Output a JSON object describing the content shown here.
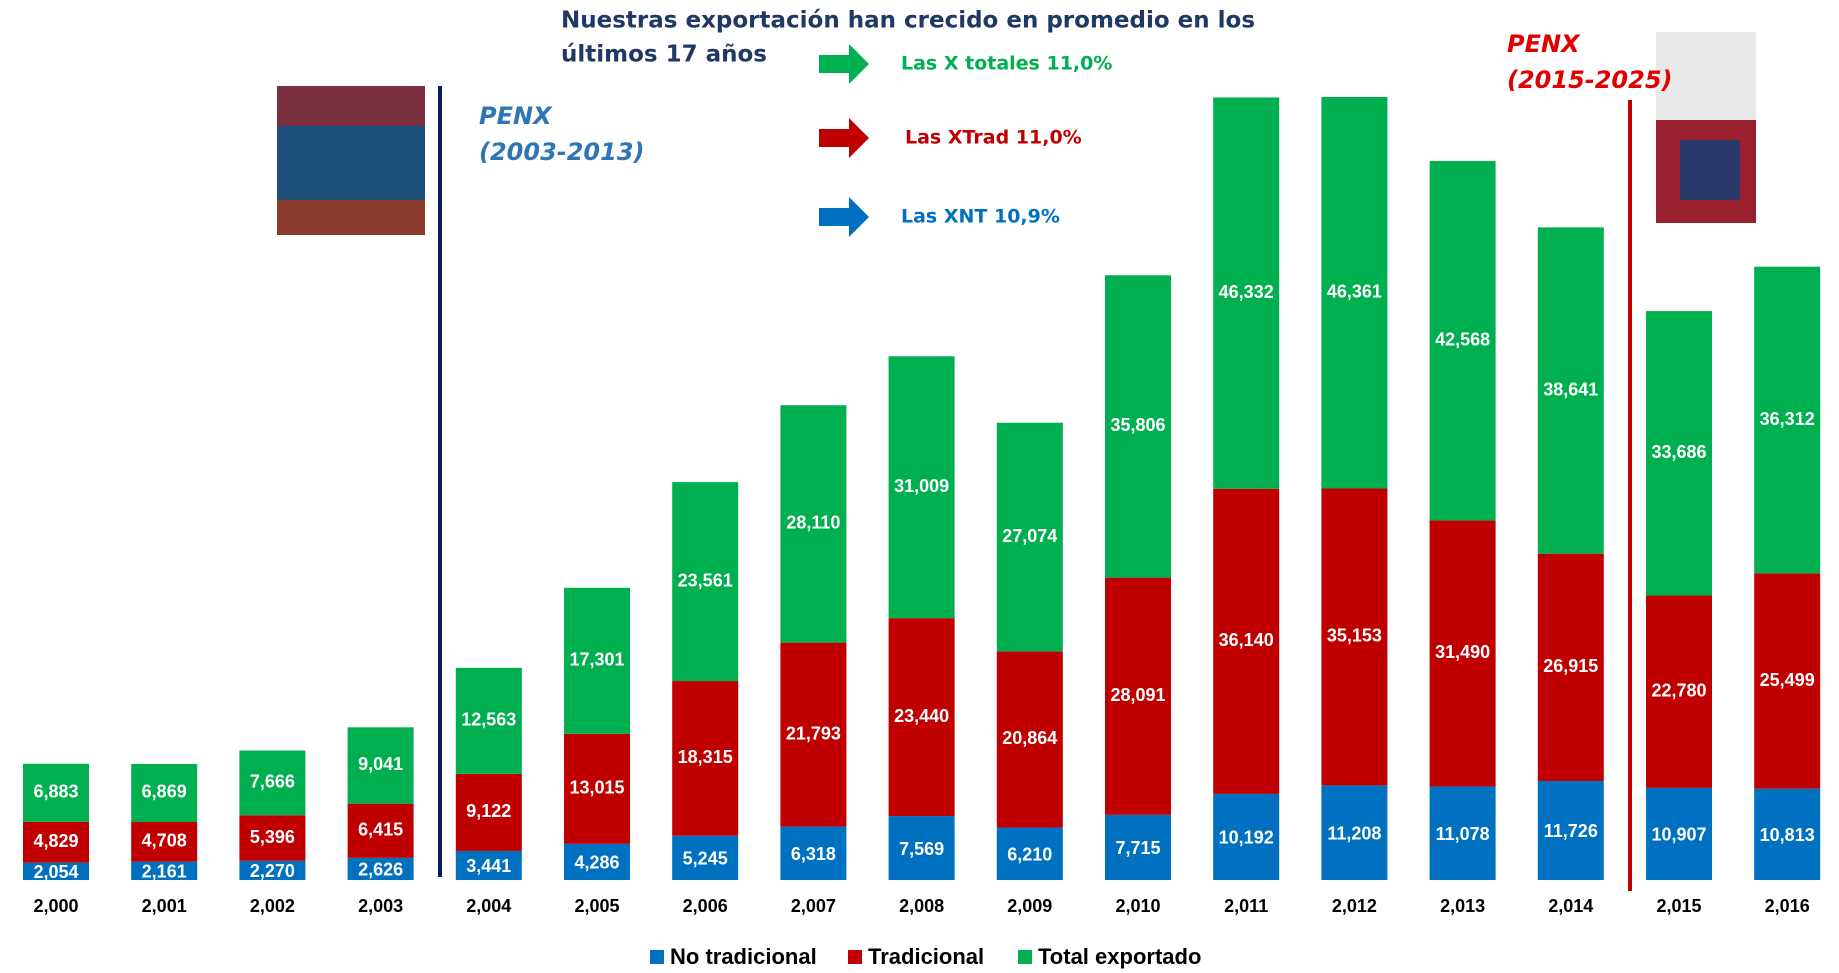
{
  "chart_data": {
    "type": "bar",
    "stacked": true,
    "title_lines": [
      "Nuestras exportación han crecido en promedio en los",
      "últimos 17 años"
    ],
    "annotations": [
      {
        "text": "Las X totales 11,0%",
        "color": "#00b050"
      },
      {
        "text": "Las XTrad 11,0%",
        "color": "#c00000"
      },
      {
        "text": "Las XNT 10,9%",
        "color": "#0070c0"
      }
    ],
    "periods": [
      {
        "lines": [
          "PENX",
          "(2003-2013)"
        ],
        "color": "#2e75b6",
        "line_color": "#002060"
      },
      {
        "lines": [
          "PENX",
          "(2015-2025)"
        ],
        "color": "#e00000",
        "line_color": "#c00000"
      }
    ],
    "categories": [
      "2,000",
      "2,001",
      "2,002",
      "2,003",
      "2,004",
      "2,005",
      "2,006",
      "2,007",
      "2,008",
      "2,009",
      "2,010",
      "2,011",
      "2,012",
      "2,013",
      "2,014",
      "2,015",
      "2,016"
    ],
    "series": [
      {
        "name": "No tradicional",
        "color": "#0070c0",
        "values": [
          2054,
          2161,
          2270,
          2626,
          3441,
          4286,
          5245,
          6318,
          7569,
          6210,
          7715,
          10192,
          11208,
          11078,
          11726,
          10907,
          10813
        ],
        "value_labels": [
          "2,054",
          "2,161",
          "2,270",
          "2,626",
          "3,441",
          "4,286",
          "5,245",
          "6,318",
          "7,569",
          "6,210",
          "7,715",
          "10,192",
          "11,208",
          "11,078",
          "11,726",
          "10,907",
          "10,813"
        ]
      },
      {
        "name": "Tradicional",
        "color": "#c00000",
        "values": [
          4829,
          4708,
          5396,
          6415,
          9122,
          13015,
          18315,
          21793,
          23440,
          20864,
          28091,
          36140,
          35153,
          31490,
          26915,
          22780,
          25499
        ],
        "value_labels": [
          "4,829",
          "4,708",
          "5,396",
          "6,415",
          "9,122",
          "13,015",
          "18,315",
          "21,793",
          "23,440",
          "20,864",
          "28,091",
          "36,140",
          "35,153",
          "31,490",
          "26,915",
          "22,780",
          "25,499"
        ]
      },
      {
        "name": "Total exportado",
        "color": "#00b050",
        "values": [
          6883,
          6869,
          7666,
          9041,
          12563,
          17301,
          23561,
          28110,
          31009,
          27074,
          35806,
          46332,
          46361,
          42568,
          38641,
          33686,
          36312
        ],
        "value_labels": [
          "6,883",
          "6,869",
          "7,666",
          "9,041",
          "12,563",
          "17,301",
          "23,561",
          "28,110",
          "31,009",
          "27,074",
          "35,806",
          "46,332",
          "46,361",
          "42,568",
          "38,641",
          "33,686",
          "36,312"
        ]
      }
    ],
    "legend": "bottom"
  }
}
